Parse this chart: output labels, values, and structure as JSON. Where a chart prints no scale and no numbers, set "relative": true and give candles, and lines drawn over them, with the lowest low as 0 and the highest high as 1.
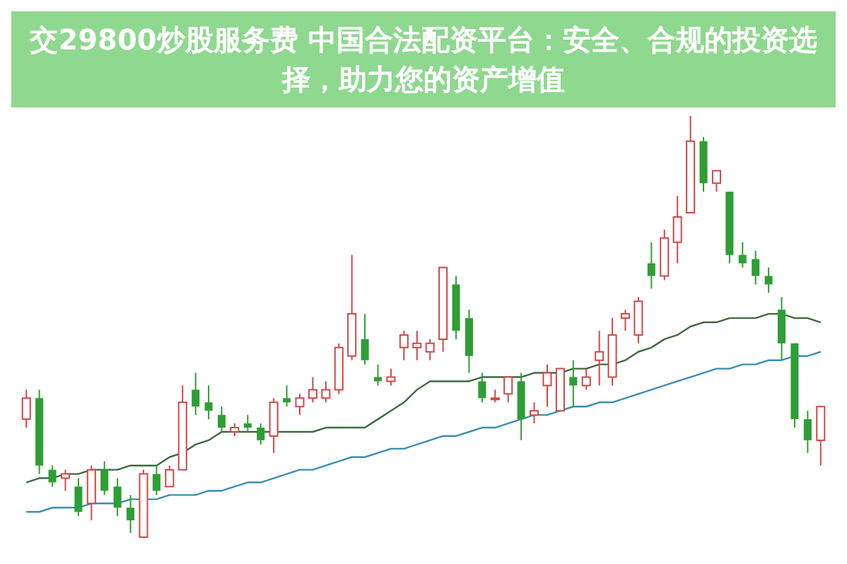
{
  "chart_data": {
    "type": "candlestick",
    "title": "交29800炒股服务费 中国合法配资平台：安全、合规的投资选择，助力您的资产增值",
    "relative": true,
    "categories": [
      null,
      null,
      null,
      null,
      null,
      null,
      null,
      null,
      null,
      null,
      null,
      null,
      null,
      null,
      null,
      null,
      null,
      null,
      null,
      null,
      null,
      null,
      null,
      null,
      null,
      null,
      null,
      null,
      null,
      null,
      null,
      null,
      null,
      null,
      null,
      null,
      null,
      null,
      null,
      null,
      null,
      null,
      null,
      null,
      null,
      null,
      null,
      null,
      null,
      null,
      null,
      null,
      null,
      null,
      null,
      null,
      null,
      null,
      null,
      null,
      null,
      null
    ],
    "ohlc": [
      [
        0.28,
        0.35,
        0.26,
        0.33
      ],
      [
        0.33,
        0.35,
        0.15,
        0.17
      ],
      [
        0.16,
        0.17,
        0.12,
        0.13
      ],
      [
        0.14,
        0.16,
        0.11,
        0.15
      ],
      [
        0.12,
        0.14,
        0.05,
        0.06
      ],
      [
        0.08,
        0.17,
        0.04,
        0.16
      ],
      [
        0.16,
        0.18,
        0.1,
        0.11
      ],
      [
        0.12,
        0.14,
        0.05,
        0.07
      ],
      [
        0.07,
        0.1,
        0.01,
        0.04
      ],
      [
        0,
        0.16,
        0,
        0.15
      ],
      [
        0.15,
        0.17,
        0.1,
        0.11
      ],
      [
        0.12,
        0.17,
        0.12,
        0.16
      ],
      [
        0.16,
        0.36,
        0.16,
        0.32
      ],
      [
        0.35,
        0.39,
        0.29,
        0.31
      ],
      [
        0.32,
        0.36,
        0.28,
        0.3
      ],
      [
        0.29,
        0.31,
        0.25,
        0.26
      ],
      [
        0.25,
        0.27,
        0.24,
        0.26
      ],
      [
        0.27,
        0.29,
        0.25,
        0.26
      ],
      [
        0.26,
        0.27,
        0.22,
        0.23
      ],
      [
        0.24,
        0.33,
        0.2,
        0.32
      ],
      [
        0.33,
        0.36,
        0.31,
        0.32
      ],
      [
        0.31,
        0.34,
        0.29,
        0.33
      ],
      [
        0.33,
        0.38,
        0.32,
        0.35
      ],
      [
        0.33,
        0.37,
        0.32,
        0.35
      ],
      [
        0.35,
        0.46,
        0.34,
        0.45
      ],
      [
        0.43,
        0.67,
        0.42,
        0.53
      ],
      [
        0.47,
        0.53,
        0.41,
        0.42
      ],
      [
        0.38,
        0.41,
        0.36,
        0.37
      ],
      [
        0.37,
        0.4,
        0.36,
        0.38
      ],
      [
        0.45,
        0.49,
        0.42,
        0.48
      ],
      [
        0.45,
        0.49,
        0.42,
        0.46
      ],
      [
        0.44,
        0.47,
        0.42,
        0.46
      ],
      [
        0.47,
        0.64,
        0.44,
        0.64
      ],
      [
        0.6,
        0.62,
        0.47,
        0.49
      ],
      [
        0.52,
        0.54,
        0.39,
        0.43
      ],
      [
        0.37,
        0.39,
        0.32,
        0.33
      ],
      [
        0.33,
        0.35,
        0.32,
        0.33
      ],
      [
        0.34,
        0.38,
        0.32,
        0.38
      ],
      [
        0.37,
        0.39,
        0.23,
        0.28
      ],
      [
        0.29,
        0.32,
        0.27,
        0.3
      ],
      [
        0.36,
        0.41,
        0.31,
        0.39
      ],
      [
        0.3,
        0.4,
        0.3,
        0.4
      ],
      [
        0.38,
        0.42,
        0.31,
        0.36
      ],
      [
        0.36,
        0.4,
        0.35,
        0.38
      ],
      [
        0.42,
        0.49,
        0.36,
        0.44
      ],
      [
        0.38,
        0.52,
        0.36,
        0.48
      ],
      [
        0.52,
        0.54,
        0.49,
        0.53
      ],
      [
        0.48,
        0.57,
        0.46,
        0.56
      ],
      [
        0.65,
        0.7,
        0.59,
        0.62
      ],
      [
        0.62,
        0.73,
        0.61,
        0.71
      ],
      [
        0.7,
        0.81,
        0.65,
        0.76
      ],
      [
        0.77,
        1,
        0.77,
        0.94
      ],
      [
        0.94,
        0.95,
        0.82,
        0.84
      ],
      [
        0.84,
        0.87,
        0.82,
        0.87
      ],
      [
        0.82,
        0.82,
        0.65,
        0.67
      ],
      [
        0.67,
        0.7,
        0.64,
        0.65
      ],
      [
        0.66,
        0.68,
        0.6,
        0.62
      ],
      [
        0.62,
        0.64,
        0.58,
        0.6
      ],
      [
        0.54,
        0.57,
        0.42,
        0.46
      ],
      [
        0.46,
        0.46,
        0.26,
        0.28
      ],
      [
        0.28,
        0.3,
        0.2,
        0.23
      ],
      [
        0.23,
        0.31,
        0.17,
        0.31
      ]
    ],
    "series": [
      {
        "type": "line",
        "color": "#3b8db5",
        "values": [
          0.06,
          0.06,
          0.07,
          0.07,
          0.07,
          0.08,
          0.08,
          0.08,
          0.09,
          0.09,
          0.09,
          0.1,
          0.1,
          0.1,
          0.11,
          0.11,
          0.12,
          0.13,
          0.13,
          0.14,
          0.15,
          0.16,
          0.16,
          0.17,
          0.18,
          0.19,
          0.19,
          0.2,
          0.21,
          0.21,
          0.22,
          0.23,
          0.24,
          0.24,
          0.25,
          0.26,
          0.26,
          0.27,
          0.28,
          0.29,
          0.29,
          0.3,
          0.31,
          0.31,
          0.32,
          0.32,
          0.33,
          0.34,
          0.35,
          0.36,
          0.37,
          0.38,
          0.39,
          0.4,
          0.4,
          0.41,
          0.41,
          0.42,
          0.42,
          0.43,
          0.43,
          0.44
        ]
      },
      {
        "type": "line",
        "color": "#3d6b3d",
        "values": [
          0.13,
          0.14,
          0.14,
          0.15,
          0.15,
          0.16,
          0.16,
          0.16,
          0.17,
          0.17,
          0.17,
          0.19,
          0.2,
          0.22,
          0.23,
          0.25,
          0.25,
          0.25,
          0.25,
          0.25,
          0.25,
          0.25,
          0.25,
          0.26,
          0.26,
          0.26,
          0.26,
          0.28,
          0.3,
          0.32,
          0.35,
          0.37,
          0.37,
          0.37,
          0.37,
          0.38,
          0.38,
          0.38,
          0.38,
          0.39,
          0.39,
          0.39,
          0.4,
          0.4,
          0.41,
          0.41,
          0.42,
          0.44,
          0.45,
          0.47,
          0.48,
          0.5,
          0.51,
          0.51,
          0.52,
          0.52,
          0.52,
          0.53,
          0.53,
          0.52,
          0.52,
          0.51
        ]
      }
    ]
  }
}
